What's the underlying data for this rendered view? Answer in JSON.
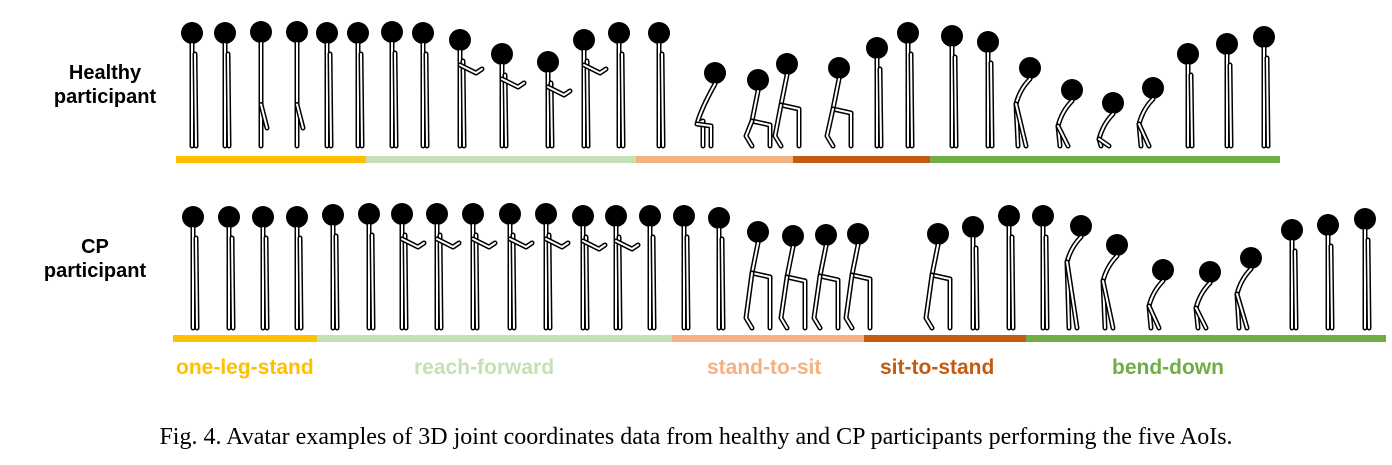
{
  "rows": [
    {
      "label_line1": "Healthy",
      "label_line2": "participant"
    },
    {
      "label_line1": "CP",
      "label_line2": "participant"
    }
  ],
  "aois": [
    {
      "name": "one-leg-stand",
      "color": "#FFC000"
    },
    {
      "name": "reach-forward",
      "color": "#C5E0B4"
    },
    {
      "name": "stand-to-sit",
      "color": "#F4B183"
    },
    {
      "name": "sit-to-stand",
      "color": "#C55A11"
    },
    {
      "name": "bend-down",
      "color": "#70AD47"
    }
  ],
  "caption": "Fig. 4.  Avatar examples of 3D joint coordinates data from healthy and CP participants performing the five AoIs."
}
